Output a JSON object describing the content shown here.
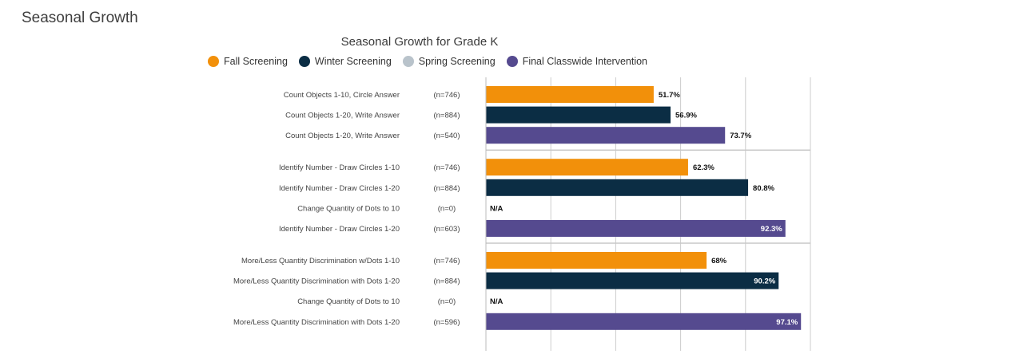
{
  "page": {
    "title": "Seasonal Growth"
  },
  "colors": {
    "fall": "#F2900A",
    "winter": "#0B2D44",
    "spring": "#B9C3CB",
    "final": "#554A8F",
    "grid": "#cccccc",
    "separator": "#c8c8c8"
  },
  "chart_data": {
    "type": "bar",
    "orientation": "horizontal",
    "title": "Seasonal Growth for Grade K",
    "xlim": [
      0,
      100
    ],
    "grid": true,
    "legend": [
      {
        "key": "fall",
        "label": "Fall Screening"
      },
      {
        "key": "winter",
        "label": "Winter Screening"
      },
      {
        "key": "spring",
        "label": "Spring Screening"
      },
      {
        "key": "final",
        "label": "Final Classwide Intervention"
      }
    ],
    "groups": [
      {
        "rows": [
          {
            "label": "Count Objects 1-10, Circle Answer",
            "n": "(n=746)",
            "series": "fall",
            "value": 51.7,
            "value_label": "51.7%"
          },
          {
            "label": "Count Objects 1-20, Write Answer",
            "n": "(n=884)",
            "series": "winter",
            "value": 56.9,
            "value_label": "56.9%"
          },
          {
            "label": "Count Objects 1-20, Write Answer",
            "n": "(n=540)",
            "series": "final",
            "value": 73.7,
            "value_label": "73.7%"
          }
        ]
      },
      {
        "rows": [
          {
            "label": "Identify Number - Draw Circles 1-10",
            "n": "(n=746)",
            "series": "fall",
            "value": 62.3,
            "value_label": "62.3%"
          },
          {
            "label": "Identify Number - Draw Circles 1-20",
            "n": "(n=884)",
            "series": "winter",
            "value": 80.8,
            "value_label": "80.8%"
          },
          {
            "label": "Change Quantity of Dots to 10",
            "n": "(n=0)",
            "series": "spring",
            "value": null,
            "value_label": "N/A"
          },
          {
            "label": "Identify Number - Draw Circles 1-20",
            "n": "(n=603)",
            "series": "final",
            "value": 92.3,
            "value_label": "92.3%"
          }
        ]
      },
      {
        "rows": [
          {
            "label": "More/Less Quantity Discrimination w/Dots 1-10",
            "n": "(n=746)",
            "series": "fall",
            "value": 68,
            "value_label": "68%"
          },
          {
            "label": "More/Less Quantity Discrimination with Dots 1-20",
            "n": "(n=884)",
            "series": "winter",
            "value": 90.2,
            "value_label": "90.2%"
          },
          {
            "label": "Change Quantity of Dots to 10",
            "n": "(n=0)",
            "series": "spring",
            "value": null,
            "value_label": "N/A"
          },
          {
            "label": "More/Less Quantity Discrimination with Dots 1-20",
            "n": "(n=596)",
            "series": "final",
            "value": 97.1,
            "value_label": "97.1%"
          }
        ]
      }
    ]
  }
}
